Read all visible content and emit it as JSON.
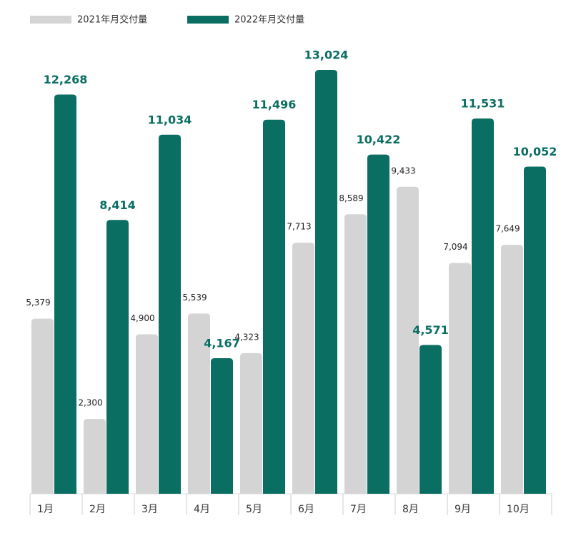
{
  "chart_data": {
    "type": "bar",
    "categories": [
      "1月",
      "2月",
      "3月",
      "4月",
      "5月",
      "6月",
      "7月",
      "8月",
      "9月",
      "10月"
    ],
    "series": [
      {
        "name": "2021年月交付量",
        "color": "#d4d4d4",
        "values": [
          5379,
          2300,
          4900,
          5539,
          4323,
          7713,
          8589,
          9433,
          7094,
          7649
        ],
        "value_labels": [
          "5,379",
          "2,300",
          "4,900",
          "5,539",
          "4,323",
          "7,713",
          "8,589",
          "9,433",
          "7,094",
          "7,649"
        ]
      },
      {
        "name": "2022年月交付量",
        "color": "#0a6e63",
        "values": [
          12268,
          8414,
          11034,
          4167,
          11496,
          13024,
          10422,
          4571,
          11531,
          10052
        ],
        "value_labels": [
          "12,268",
          "8,414",
          "11,034",
          "4,167",
          "11,496",
          "13,024",
          "10,422",
          "4,571",
          "11,531",
          "10,052"
        ]
      }
    ]
  }
}
